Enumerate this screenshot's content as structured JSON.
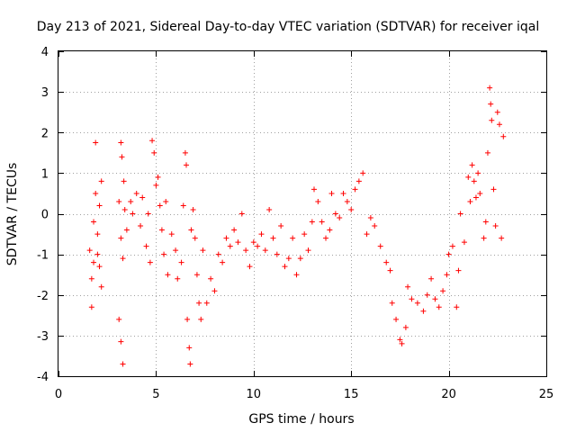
{
  "chart_data": {
    "type": "scatter",
    "title": "Day 213 of 2021, Sidereal Day-to-day VTEC variation (SDTVAR) for receiver iqal",
    "xlabel": "GPS time / hours",
    "ylabel": "SDTVAR / TECUs",
    "xlim": [
      0,
      25
    ],
    "ylim": [
      -4,
      4
    ],
    "x_ticks": [
      0,
      5,
      10,
      15,
      20,
      25
    ],
    "y_ticks": [
      -4,
      -3,
      -2,
      -1,
      0,
      1,
      2,
      3,
      4
    ],
    "grid": true,
    "marker": "+",
    "color": "#ff0000",
    "series": [
      {
        "name": "SDTVAR",
        "points": [
          [
            1.6,
            -0.9
          ],
          [
            1.7,
            -2.3
          ],
          [
            1.7,
            -1.6
          ],
          [
            1.8,
            -0.2
          ],
          [
            1.8,
            -1.2
          ],
          [
            1.9,
            1.75
          ],
          [
            1.9,
            0.5
          ],
          [
            2.0,
            -0.5
          ],
          [
            2.0,
            -1.0
          ],
          [
            2.1,
            0.2
          ],
          [
            2.1,
            -1.3
          ],
          [
            2.2,
            -1.8
          ],
          [
            2.2,
            0.8
          ],
          [
            3.1,
            0.3
          ],
          [
            3.1,
            -2.6
          ],
          [
            3.2,
            -0.6
          ],
          [
            3.2,
            1.75
          ],
          [
            3.2,
            -3.15
          ],
          [
            3.25,
            1.4
          ],
          [
            3.3,
            -3.7
          ],
          [
            3.3,
            -1.1
          ],
          [
            3.35,
            0.8
          ],
          [
            3.4,
            0.1
          ],
          [
            3.5,
            -0.4
          ],
          [
            3.7,
            0.3
          ],
          [
            3.8,
            0.0
          ],
          [
            4.0,
            0.5
          ],
          [
            4.2,
            -0.3
          ],
          [
            4.3,
            0.4
          ],
          [
            4.5,
            -0.8
          ],
          [
            4.6,
            0.0
          ],
          [
            4.7,
            -1.2
          ],
          [
            4.8,
            1.8
          ],
          [
            4.9,
            1.5
          ],
          [
            5.0,
            0.7
          ],
          [
            5.1,
            0.9
          ],
          [
            5.2,
            0.2
          ],
          [
            5.3,
            -0.4
          ],
          [
            5.4,
            -1.0
          ],
          [
            5.5,
            0.3
          ],
          [
            5.6,
            -1.5
          ],
          [
            5.8,
            -0.5
          ],
          [
            6.0,
            -0.9
          ],
          [
            6.1,
            -1.6
          ],
          [
            6.3,
            -1.2
          ],
          [
            6.4,
            0.2
          ],
          [
            6.5,
            1.5
          ],
          [
            6.55,
            1.2
          ],
          [
            6.6,
            -2.6
          ],
          [
            6.7,
            -3.3
          ],
          [
            6.75,
            -3.7
          ],
          [
            6.8,
            -0.4
          ],
          [
            6.9,
            0.1
          ],
          [
            7.0,
            -0.6
          ],
          [
            7.1,
            -1.5
          ],
          [
            7.2,
            -2.2
          ],
          [
            7.3,
            -2.6
          ],
          [
            7.4,
            -0.9
          ],
          [
            7.6,
            -2.2
          ],
          [
            7.8,
            -1.6
          ],
          [
            8.0,
            -1.9
          ],
          [
            8.2,
            -1.0
          ],
          [
            8.4,
            -1.2
          ],
          [
            8.6,
            -0.6
          ],
          [
            8.8,
            -0.8
          ],
          [
            9.0,
            -0.4
          ],
          [
            9.2,
            -0.7
          ],
          [
            9.4,
            0.0
          ],
          [
            9.6,
            -0.9
          ],
          [
            9.8,
            -1.3
          ],
          [
            10.0,
            -0.7
          ],
          [
            10.2,
            -0.8
          ],
          [
            10.4,
            -0.5
          ],
          [
            10.6,
            -0.9
          ],
          [
            10.8,
            0.1
          ],
          [
            11.0,
            -0.6
          ],
          [
            11.2,
            -1.0
          ],
          [
            11.4,
            -0.3
          ],
          [
            11.6,
            -1.3
          ],
          [
            11.8,
            -1.1
          ],
          [
            12.0,
            -0.6
          ],
          [
            12.2,
            -1.5
          ],
          [
            12.4,
            -1.1
          ],
          [
            12.6,
            -0.5
          ],
          [
            12.8,
            -0.9
          ],
          [
            13.0,
            -0.2
          ],
          [
            13.1,
            0.6
          ],
          [
            13.3,
            0.3
          ],
          [
            13.5,
            -0.2
          ],
          [
            13.7,
            -0.6
          ],
          [
            13.9,
            -0.4
          ],
          [
            14.0,
            0.5
          ],
          [
            14.2,
            0.0
          ],
          [
            14.4,
            -0.1
          ],
          [
            14.6,
            0.5
          ],
          [
            14.8,
            0.3
          ],
          [
            15.0,
            0.1
          ],
          [
            15.2,
            0.6
          ],
          [
            15.4,
            0.8
          ],
          [
            15.6,
            1.0
          ],
          [
            15.8,
            -0.5
          ],
          [
            16.0,
            -0.1
          ],
          [
            16.2,
            -0.3
          ],
          [
            16.5,
            -0.8
          ],
          [
            16.8,
            -1.2
          ],
          [
            17.0,
            -1.4
          ],
          [
            17.1,
            -2.2
          ],
          [
            17.3,
            -2.6
          ],
          [
            17.5,
            -3.1
          ],
          [
            17.6,
            -3.2
          ],
          [
            17.8,
            -2.8
          ],
          [
            17.9,
            -1.8
          ],
          [
            18.1,
            -2.1
          ],
          [
            18.4,
            -2.2
          ],
          [
            18.7,
            -2.4
          ],
          [
            18.9,
            -2.0
          ],
          [
            19.1,
            -1.6
          ],
          [
            19.3,
            -2.1
          ],
          [
            19.5,
            -2.3
          ],
          [
            19.7,
            -1.9
          ],
          [
            19.9,
            -1.5
          ],
          [
            20.0,
            -1.0
          ],
          [
            20.2,
            -0.8
          ],
          [
            20.4,
            -2.3
          ],
          [
            20.5,
            -1.4
          ],
          [
            20.6,
            0.0
          ],
          [
            20.8,
            -0.7
          ],
          [
            21.0,
            0.9
          ],
          [
            21.1,
            0.3
          ],
          [
            21.2,
            1.2
          ],
          [
            21.3,
            0.8
          ],
          [
            21.4,
            0.4
          ],
          [
            21.5,
            1.0
          ],
          [
            21.6,
            0.5
          ],
          [
            21.8,
            -0.6
          ],
          [
            21.9,
            -0.2
          ],
          [
            22.0,
            1.5
          ],
          [
            22.1,
            3.1
          ],
          [
            22.15,
            2.7
          ],
          [
            22.2,
            2.3
          ],
          [
            22.3,
            0.6
          ],
          [
            22.4,
            -0.3
          ],
          [
            22.5,
            2.5
          ],
          [
            22.6,
            2.2
          ],
          [
            22.7,
            -0.6
          ],
          [
            22.8,
            1.9
          ]
        ]
      }
    ]
  }
}
